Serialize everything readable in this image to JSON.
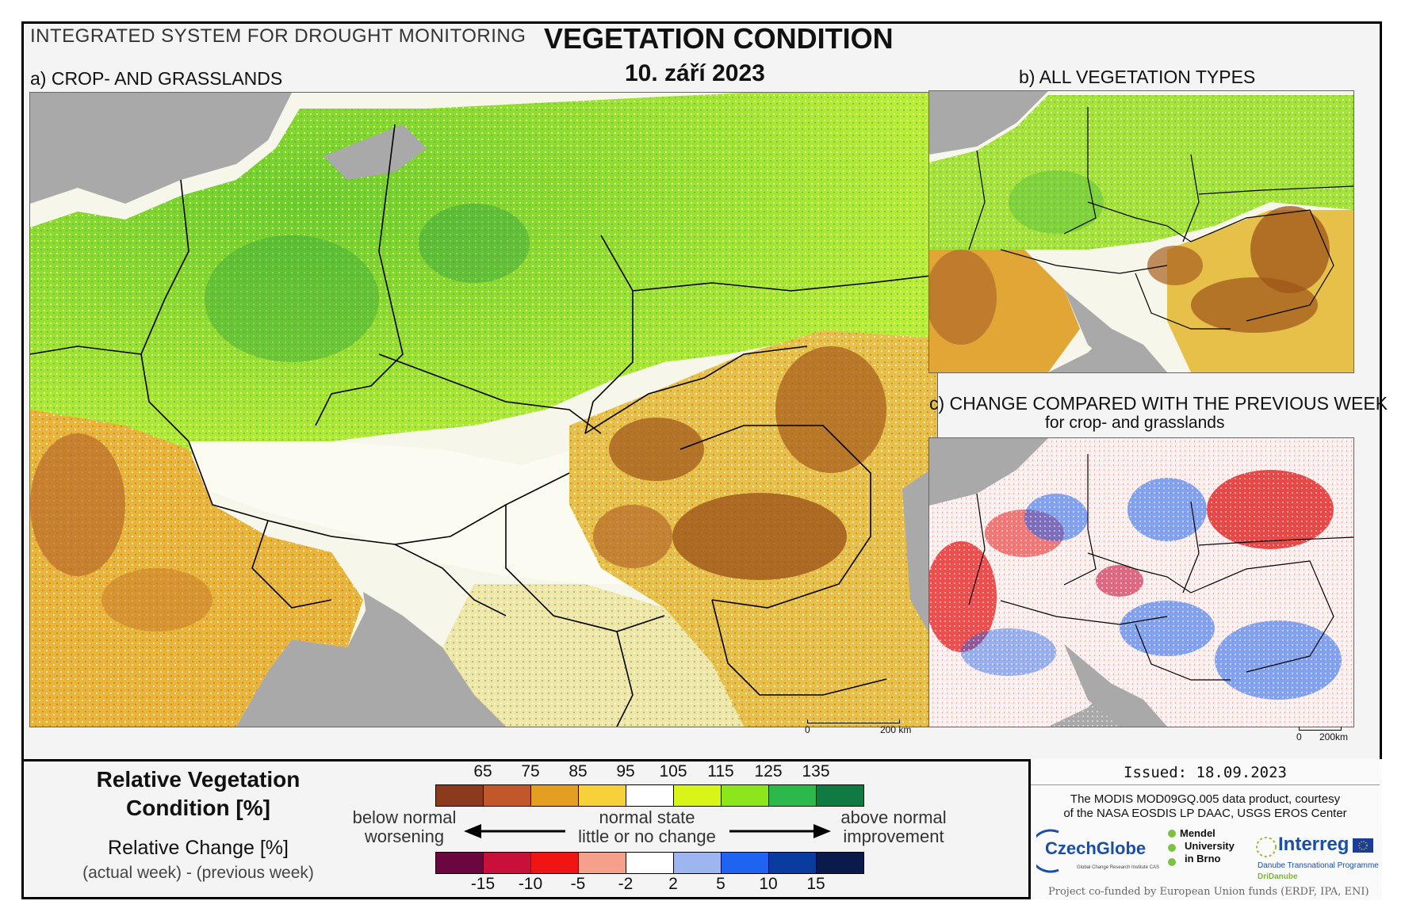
{
  "header": {
    "system_title": "INTEGRATED SYSTEM FOR DROUGHT MONITORING",
    "main_title": "VEGETATION CONDITION",
    "date": "10. září 2023"
  },
  "panels": {
    "a_label": "a) CROP- AND GRASSLANDS",
    "b_label": "b) ALL VEGETATION TYPES",
    "c_label": "c) CHANGE COMPARED WITH THE PREVIOUS WEEK",
    "c_sublabel": "for crop- and grasslands"
  },
  "scalebar": {
    "a_zero": "0",
    "a_dist": "200 km",
    "c_zero": "0",
    "c_dist": "200km"
  },
  "legend": {
    "rvc_title_line1": "Relative Vegetation",
    "rvc_title_line2": "Condition [%]",
    "rc_title": "Relative Change [%]",
    "rc_subtitle": "(actual week) - (previous week)",
    "rvc_ticks": [
      "65",
      "75",
      "85",
      "95",
      "105",
      "115",
      "125",
      "135"
    ],
    "rvc_colors": [
      "#8b3a1e",
      "#c2582a",
      "#e49f22",
      "#f7d13a",
      "#ffffff",
      "#d8f419",
      "#8de51b",
      "#2cb84a",
      "#0f7a42"
    ],
    "rc_ticks": [
      "-15",
      "-10",
      "-5",
      "-2",
      "2",
      "5",
      "10",
      "15"
    ],
    "rc_colors": [
      "#6a0640",
      "#c8103a",
      "#f01414",
      "#f5a08a",
      "#ffffff",
      "#9db6f0",
      "#1e64f0",
      "#0a3ca0",
      "#0a1a4a"
    ],
    "below_normal": "below normal",
    "worsening": "worsening",
    "normal_state": "normal state",
    "little_change": "little or no change",
    "above_normal": "above normal",
    "improvement": "improvement"
  },
  "info": {
    "issued": "Issued: 18.09.2023",
    "credit_line1": "The MODIS MOD09GQ.005 data product, courtesy",
    "credit_line2": "of the NASA EOSDIS LP DAAC, USGS EROS Center",
    "logo_czechglobe": "CzechGlobe",
    "logo_czechglobe_sub": "Global Change Research Institute CAS",
    "logo_mendel_1": "Mendel",
    "logo_mendel_2": "University",
    "logo_mendel_3": "in Brno",
    "logo_interreg": "Interreg",
    "logo_interreg_sub": "Danube Transnational Programme",
    "logo_dridanube": "DriDanube",
    "cofund": "Project co-funded by European Union funds (ERDF, IPA, ENI)"
  }
}
